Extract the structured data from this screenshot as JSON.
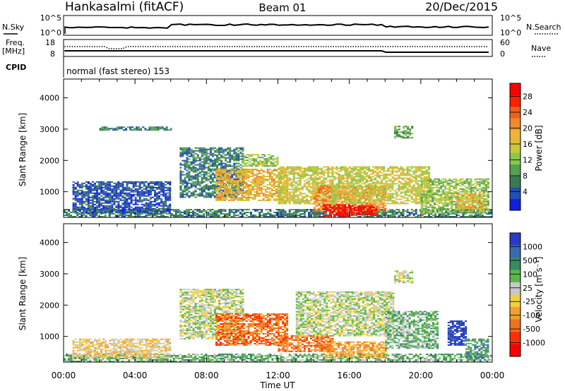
{
  "header": {
    "station": "Hankasalmi (fitACF)",
    "beam": "Beam 01",
    "date": "20/Dec/2015"
  },
  "top_panels": {
    "nsky": {
      "label": "N.Sky",
      "left_ticks": [
        "10^5",
        "10^0"
      ],
      "right_label": "N.Search",
      "right_ticks": [
        "10^5",
        "10^0"
      ]
    },
    "freq": {
      "label_line1": "Freq.",
      "label_line2": "[MHz]",
      "left_ticks": [
        "18",
        "8"
      ],
      "right_label": "Nave",
      "right_ticks": [
        "60",
        "0"
      ]
    },
    "cpid": {
      "label": "CPID",
      "text": "normal (fast stereo) 153"
    }
  },
  "chart_data": [
    {
      "type": "heatmap",
      "panel": "power",
      "ylabel": "Slant Range [km]",
      "x_ticks": [
        "00:00",
        "04:00",
        "08:00",
        "12:00",
        "16:00",
        "20:00",
        "00:00"
      ],
      "y_ticks": [
        "1000",
        "2000",
        "3000",
        "4000"
      ],
      "ylim": [
        180,
        4600
      ],
      "xlim": [
        0,
        24
      ],
      "colorbar": {
        "label": "Power [dB]",
        "ticks": [
          "4",
          "8",
          "12",
          "16",
          "20",
          "24",
          "28"
        ],
        "colors": [
          "#1020e0",
          "#2050b0",
          "#3a7a50",
          "#56a050",
          "#8ac84a",
          "#c8c83a",
          "#f0b43a",
          "#f08a2a",
          "#f0601a",
          "#ff2000",
          "#ff0000"
        ]
      },
      "regions": [
        {
          "t": [
            0.0,
            24.0
          ],
          "r": [
            180,
            420
          ],
          "level": 2
        },
        {
          "t": [
            0.5,
            6.0
          ],
          "r": [
            300,
            1300
          ],
          "level": 1
        },
        {
          "t": [
            6.5,
            10.0
          ],
          "r": [
            800,
            2400
          ],
          "level": 2
        },
        {
          "t": [
            8.5,
            12.5
          ],
          "r": [
            700,
            1700
          ],
          "level": 6
        },
        {
          "t": [
            10.0,
            12.0
          ],
          "r": [
            1800,
            2200
          ],
          "level": 4
        },
        {
          "t": [
            12.0,
            15.0
          ],
          "r": [
            600,
            1800
          ],
          "level": 5
        },
        {
          "t": [
            14.0,
            18.0
          ],
          "r": [
            350,
            1200
          ],
          "level": 7
        },
        {
          "t": [
            14.5,
            16.0
          ],
          "r": [
            200,
            600
          ],
          "level": 10
        },
        {
          "t": [
            16.0,
            17.5
          ],
          "r": [
            250,
            550
          ],
          "level": 10
        },
        {
          "t": [
            15.0,
            20.5
          ],
          "r": [
            600,
            1800
          ],
          "level": 5
        },
        {
          "t": [
            18.5,
            19.5
          ],
          "r": [
            2700,
            3100
          ],
          "level": 3
        },
        {
          "t": [
            20.0,
            23.8
          ],
          "r": [
            300,
            1400
          ],
          "level": 4
        },
        {
          "t": [
            22.0,
            23.5
          ],
          "r": [
            400,
            900
          ],
          "level": 6
        },
        {
          "t": [
            2.0,
            6.0
          ],
          "r": [
            2950,
            3050
          ],
          "level": 2
        }
      ]
    },
    {
      "type": "heatmap",
      "panel": "velocity",
      "ylabel": "Slant Range [km]",
      "xlabel": "Time UT",
      "x_ticks": [
        "00:00",
        "04:00",
        "08:00",
        "12:00",
        "16:00",
        "20:00",
        "00:00"
      ],
      "y_ticks": [
        "1000",
        "2000",
        "3000",
        "4000"
      ],
      "ylim": [
        180,
        4600
      ],
      "xlim": [
        0,
        24
      ],
      "colorbar": {
        "label": "Velocity [m s⁻¹]",
        "ticks": [
          "1000",
          "500",
          "100",
          "25",
          "-25",
          "-100",
          "-500",
          "-1000"
        ],
        "colors": [
          "#2a3ac8",
          "#3a6ab0",
          "#3a8a60",
          "#5ab84a",
          "#c8c8c8",
          "#f0d040",
          "#f0a030",
          "#f07020",
          "#ff3000",
          "#ff0000"
        ]
      },
      "regions": [
        {
          "t": [
            0.0,
            24.0
          ],
          "r": [
            180,
            450
          ],
          "level": 3
        },
        {
          "t": [
            0.5,
            6.0
          ],
          "r": [
            300,
            900
          ],
          "level": 5
        },
        {
          "t": [
            6.5,
            10.0
          ],
          "r": [
            900,
            2500
          ],
          "level": 4
        },
        {
          "t": [
            8.5,
            12.5
          ],
          "r": [
            700,
            1700
          ],
          "level": 7
        },
        {
          "t": [
            12.0,
            15.0
          ],
          "r": [
            500,
            1000
          ],
          "level": 7
        },
        {
          "t": [
            13.0,
            18.5
          ],
          "r": [
            1000,
            2400
          ],
          "level": 4
        },
        {
          "t": [
            14.5,
            18.0
          ],
          "r": [
            300,
            800
          ],
          "level": 6
        },
        {
          "t": [
            18.0,
            21.0
          ],
          "r": [
            600,
            1800
          ],
          "level": 3
        },
        {
          "t": [
            21.5,
            22.5
          ],
          "r": [
            700,
            1500
          ],
          "level": 0
        },
        {
          "t": [
            22.5,
            23.8
          ],
          "r": [
            300,
            900
          ],
          "level": 2
        },
        {
          "t": [
            18.5,
            19.5
          ],
          "r": [
            2700,
            3100
          ],
          "level": 4
        }
      ]
    }
  ]
}
